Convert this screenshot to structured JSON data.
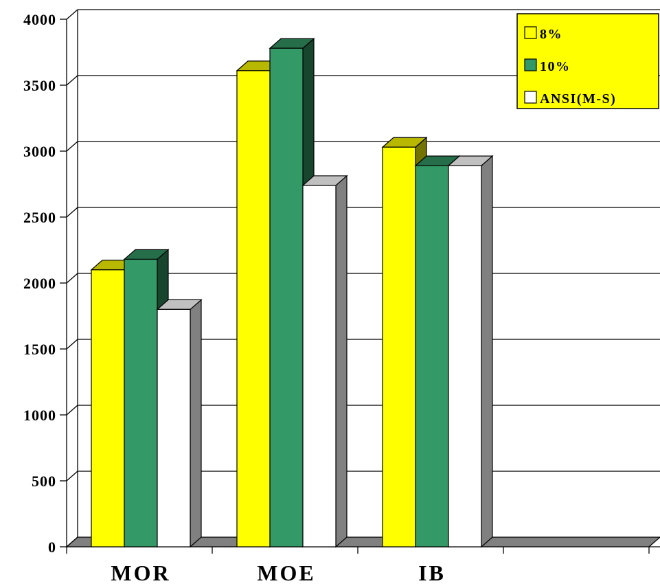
{
  "chart_data": {
    "type": "bar",
    "categories": [
      "MOR",
      "MOE",
      "IB"
    ],
    "series": [
      {
        "name": "8%",
        "values": [
          2100,
          3610,
          3030
        ],
        "color": "#FFFF00"
      },
      {
        "name": "10%",
        "values": [
          2180,
          3780,
          2890
        ],
        "color": "#339966"
      },
      {
        "name": "ANSI(M-S)",
        "values": [
          1800,
          2740,
          2890
        ],
        "color": "#FFFFFF"
      }
    ],
    "title": "",
    "xlabel": "",
    "ylabel": "",
    "ylim": [
      0,
      4000
    ],
    "y_ticks": [
      "0",
      "500",
      "1000",
      "1500",
      "2000",
      "2500",
      "3000",
      "3500",
      "4000"
    ],
    "grid": true,
    "legend": "top-right",
    "style": "3d-column",
    "legend_background": "#FFFF00"
  }
}
